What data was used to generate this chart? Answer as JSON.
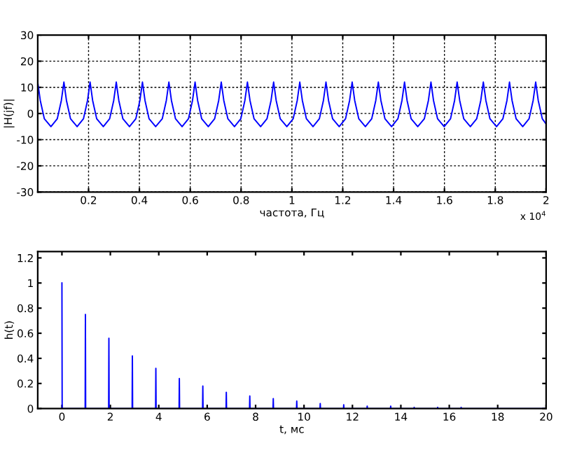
{
  "chart_data": [
    {
      "type": "line",
      "xlabel": "частота, Гц",
      "ylabel": "|H(jf)|",
      "annotations": [
        "x 10$^{4}$"
      ],
      "xlim": [
        0,
        2
      ],
      "xticks": [
        0.2,
        0.4,
        0.6,
        0.8,
        1,
        1.2,
        1.4,
        1.6,
        1.8,
        2
      ],
      "ylim": [
        -30,
        30
      ],
      "yticks": [
        -30,
        -20,
        -10,
        0,
        10,
        20,
        30
      ],
      "grid": true,
      "line_style": "solid",
      "marker": "none",
      "series": [
        {
          "color": "#0000ff",
          "x": [
            0,
            0.01,
            0.026,
            0.052,
            0.077,
            0.093,
            0.103,
            0.113,
            0.129,
            0.155,
            0.18,
            0.196,
            0.206,
            0.216,
            0.232,
            0.258,
            0.283,
            0.299,
            0.309,
            0.319,
            0.335,
            0.361,
            0.386,
            0.402,
            0.412,
            0.422,
            0.438,
            0.464,
            0.49,
            0.506,
            0.516,
            0.526,
            0.542,
            0.568,
            0.593,
            0.609,
            0.619,
            0.629,
            0.645,
            0.671,
            0.696,
            0.712,
            0.722,
            0.732,
            0.748,
            0.774,
            0.799,
            0.815,
            0.825,
            0.835,
            0.851,
            0.877,
            0.902,
            0.918,
            0.928,
            0.938,
            0.954,
            0.98,
            1.005,
            1.021,
            1.031,
            1.041,
            1.057,
            1.083,
            1.108,
            1.124,
            1.134,
            1.144,
            1.16,
            1.186,
            1.211,
            1.227,
            1.237,
            1.247,
            1.263,
            1.289,
            1.314,
            1.33,
            1.34,
            1.35,
            1.366,
            1.392,
            1.417,
            1.433,
            1.443,
            1.453,
            1.469,
            1.495,
            1.521,
            1.537,
            1.547,
            1.557,
            1.573,
            1.599,
            1.624,
            1.64,
            1.65,
            1.66,
            1.676,
            1.702,
            1.727,
            1.743,
            1.753,
            1.763,
            1.779,
            1.805,
            1.83,
            1.846,
            1.856,
            1.866,
            1.882,
            1.908,
            1.933,
            1.949,
            1.959,
            1.969,
            1.985,
            2
          ],
          "values": [
            12,
            5,
            -2,
            -5,
            -2,
            5,
            12,
            5,
            -2,
            -5,
            -2,
            5,
            12,
            5,
            -2,
            -5,
            -2,
            5,
            12,
            5,
            -2,
            -5,
            -2,
            5,
            12,
            5,
            -2,
            -5,
            -2,
            5,
            12,
            5,
            -2,
            -5,
            -2,
            5,
            12,
            5,
            -2,
            -5,
            -2,
            5,
            12,
            5,
            -2,
            -5,
            -2,
            5,
            12,
            5,
            -2,
            -5,
            -2,
            5,
            12,
            5,
            -2,
            -5,
            -2,
            5,
            12,
            5,
            -2,
            -5,
            -2,
            5,
            12,
            5,
            -2,
            -5,
            -2,
            5,
            12,
            5,
            -2,
            -5,
            -2,
            5,
            12,
            5,
            -2,
            -5,
            -2,
            5,
            12,
            5,
            -2,
            -5,
            -2,
            5,
            12,
            5,
            -2,
            -5,
            -2,
            5,
            12,
            5,
            -2,
            -5,
            -2,
            5,
            12,
            5,
            -2,
            -5,
            -2,
            5,
            12,
            5,
            -2,
            -5,
            -2,
            5,
            12,
            5,
            -2,
            -4
          ]
        }
      ]
    },
    {
      "type": "line",
      "xlabel": "t, мс",
      "ylabel": "h(t)",
      "xlim": [
        -1,
        20
      ],
      "xticks": [
        0,
        2,
        4,
        6,
        8,
        10,
        12,
        14,
        16,
        18,
        20
      ],
      "ylim": [
        0,
        1.25
      ],
      "yticks": [
        0,
        0.2,
        0.4,
        0.6,
        0.8,
        1,
        1.2
      ],
      "grid": false,
      "line_style": "solid",
      "marker": "none",
      "series": [
        {
          "color": "#0000ff",
          "x": [
            0,
            0.01,
            0.96,
            0.97,
            0.98,
            1.93,
            1.94,
            1.95,
            2.9,
            2.91,
            2.92,
            3.87,
            3.88,
            3.89,
            4.84,
            4.85,
            4.86,
            5.81,
            5.82,
            5.83,
            6.78,
            6.79,
            6.8,
            7.75,
            7.76,
            7.77,
            8.72,
            8.73,
            8.74,
            9.69,
            9.7,
            9.71,
            10.66,
            10.67,
            10.68,
            11.63,
            11.64,
            11.65,
            12.6,
            12.61,
            12.62,
            13.57,
            13.58,
            13.59,
            14.54,
            14.55,
            14.56,
            15.51,
            15.52,
            15.53,
            16.48,
            16.49,
            16.5,
            20
          ],
          "values": [
            1,
            0,
            0,
            0.75,
            0,
            0,
            0.56,
            0,
            0,
            0.42,
            0,
            0,
            0.32,
            0,
            0,
            0.24,
            0,
            0,
            0.18,
            0,
            0,
            0.13,
            0,
            0,
            0.1,
            0,
            0,
            0.08,
            0,
            0,
            0.06,
            0,
            0,
            0.04,
            0,
            0,
            0.03,
            0,
            0,
            0.02,
            0,
            0,
            0.02,
            0,
            0,
            0.01,
            0,
            0,
            0.01,
            0,
            0,
            0.01,
            0,
            0
          ]
        }
      ]
    }
  ]
}
